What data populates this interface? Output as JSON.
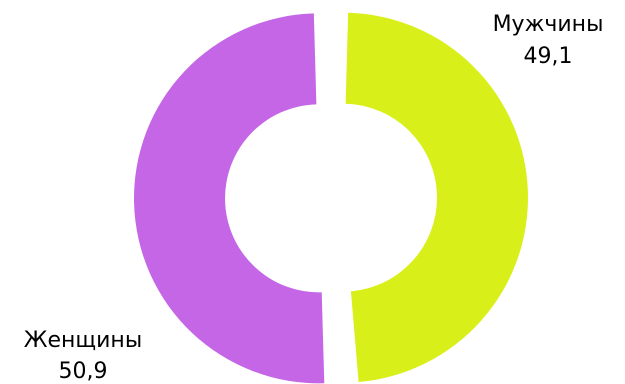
{
  "chart_data": {
    "type": "pie",
    "donut": true,
    "title": "",
    "series": [
      {
        "name": "Мужчины",
        "value_label": "49,1",
        "value": 49.1,
        "color": "#d9ef1a"
      },
      {
        "name": "Женщины",
        "value_label": "50,9",
        "value": 50.9,
        "color": "#c566e6"
      }
    ],
    "legend": "none",
    "data_labels": "outside"
  }
}
